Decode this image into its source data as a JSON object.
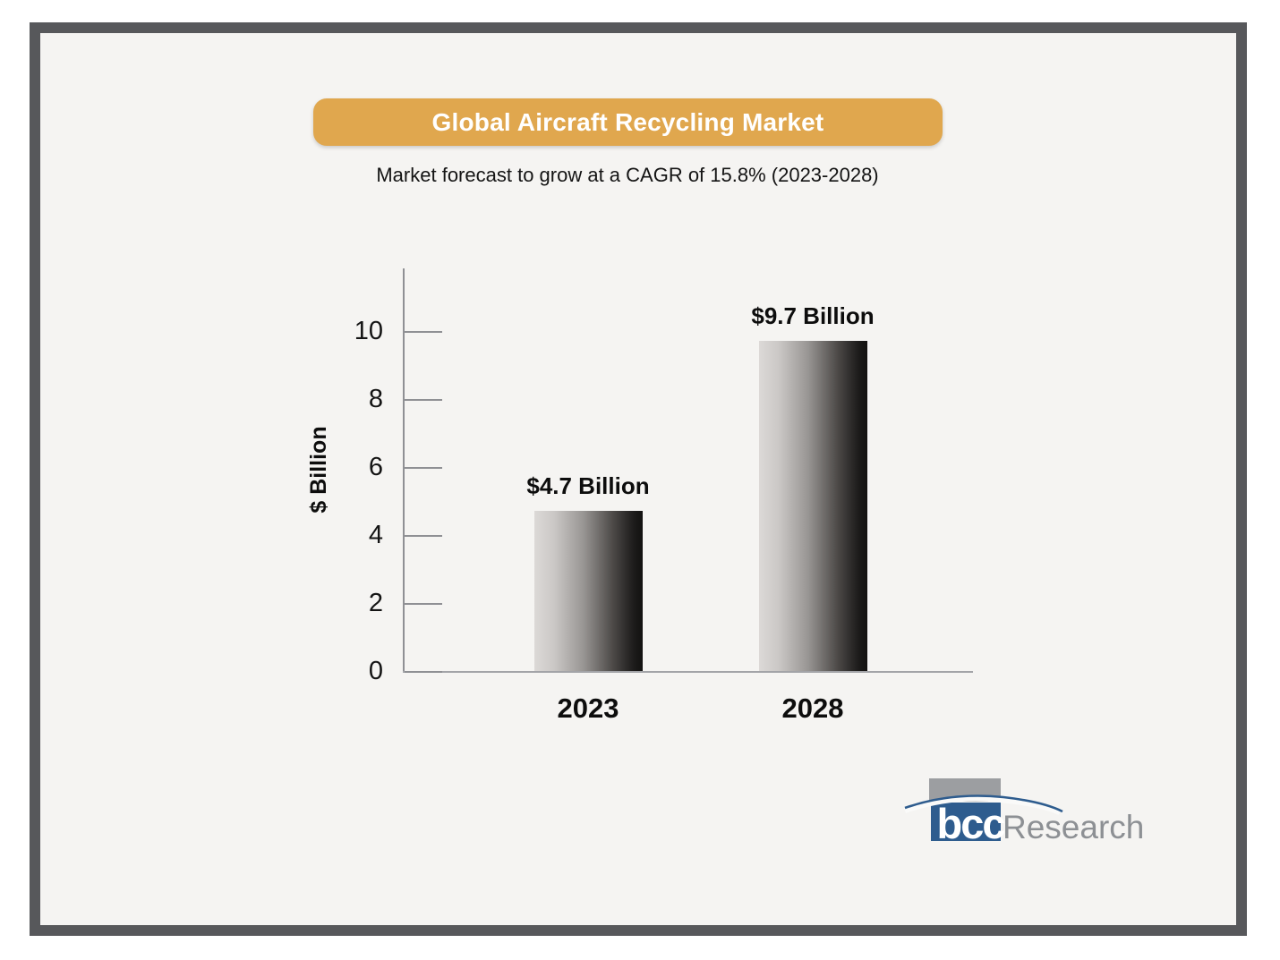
{
  "page": {
    "title": "Global Aircraft Recycling Market",
    "subtitle": "Market forecast to grow at a CAGR of 15.8% (2023-2028)",
    "accent_color": "#e0a74e",
    "frame_color": "#57585b",
    "background_color": "#f5f4f2"
  },
  "chart_data": {
    "type": "bar",
    "title": "Global Aircraft Recycling Market",
    "subtitle": "Market forecast to grow at a CAGR of 15.8% (2023-2028)",
    "categories": [
      "2023",
      "2028"
    ],
    "values": [
      4.7,
      9.7
    ],
    "bar_labels": [
      "$4.7 Billion",
      "$9.7 Billion"
    ],
    "ylabel": "$ Billion",
    "yticks": [
      0,
      2,
      4,
      6,
      8,
      10
    ],
    "ylim": [
      0,
      11.9
    ],
    "grid": false,
    "legend": false,
    "bar_gradient_left": "#dcd9d7",
    "bar_gradient_right": "#131211"
  },
  "logo": {
    "name": "bcc Research",
    "text_bold": "bcc",
    "text_regular": "Research",
    "blue": "#2e5c8e",
    "square_gray": "#9c9ea1",
    "text_gray": "#8d9094"
  }
}
